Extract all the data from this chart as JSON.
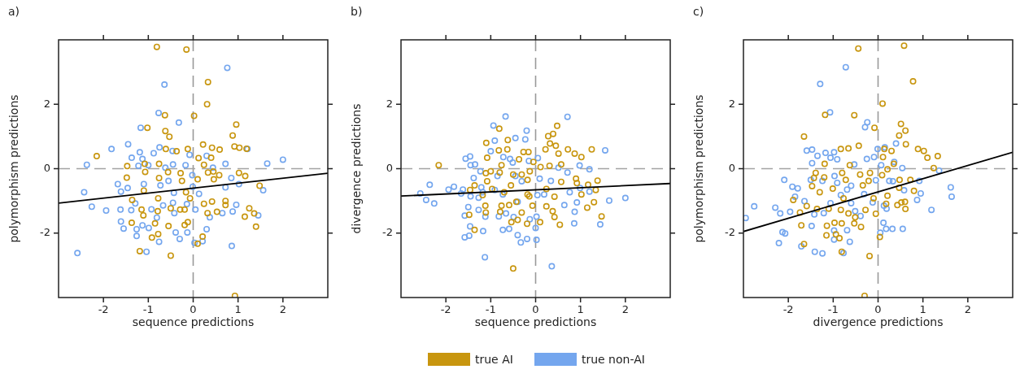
{
  "chart_data": [
    {
      "type": "scatter",
      "title": "a)",
      "xlabel": "sequence predictions",
      "ylabel": "polymorphism predictions",
      "xlim": [
        -3,
        3
      ],
      "ylim": [
        -4,
        4
      ],
      "xticks": [
        -2,
        -1,
        0,
        1,
        2
      ],
      "yticks": [
        -2,
        0,
        2
      ],
      "ref_lines": [
        {
          "axis": "x",
          "value": 0,
          "color": "#999999",
          "line_style": "dashed"
        },
        {
          "axis": "y",
          "value": 0,
          "color": "#a3a3a3",
          "line_style": "dashed"
        }
      ],
      "series": [
        {
          "marker": "circle",
          "color": "#c8960f",
          "x": [
            -0.81,
            -0.15,
            0.33,
            0.31,
            -0.63,
            0.02,
            -1.02,
            -0.62,
            -0.53,
            0.96,
            0.88,
            -2.15,
            -1.47,
            -0.61,
            -0.37,
            -0.12,
            0.22,
            0.42,
            0.59,
            0.92,
            1.03,
            1.19,
            0.12,
            0.4,
            0.24,
            -1.08,
            -1.07,
            -0.76,
            -0.56,
            -1.48,
            -0.76,
            -0.28,
            -0.25,
            0.1,
            0.33,
            0.45,
            0.58,
            1.02,
            1.16,
            0.46,
            1.48,
            -1.1,
            -1.36,
            -0.78,
            -0.16,
            -0.07,
            0.42,
            0.72,
            0.72,
            0.24,
            -1.15,
            -1.11,
            -0.79,
            -0.5,
            -0.29,
            -0.19,
            0.32,
            0.53,
            1.25,
            1.36,
            1.15,
            -1.37,
            -0.85,
            -0.55,
            -0.19,
            -0.12,
            1.4,
            -0.78,
            -0.92,
            0.21,
            0.1,
            -1.19,
            -0.5,
            0.93
          ],
          "values": [
            3.78,
            3.7,
            2.69,
            2.0,
            1.66,
            1.64,
            1.27,
            1.17,
            0.99,
            1.37,
            1.03,
            0.39,
            0.08,
            0.61,
            0.54,
            0.61,
            0.75,
            0.65,
            0.59,
            0.69,
            0.65,
            0.62,
            0.33,
            0.34,
            0.12,
            0.15,
            -0.1,
            0.15,
            -0.11,
            -0.28,
            -0.29,
            -0.14,
            -0.38,
            -0.33,
            -0.12,
            -0.09,
            -0.2,
            -0.13,
            -0.23,
            -0.33,
            -0.53,
            -0.68,
            -0.97,
            -0.92,
            -0.73,
            -0.92,
            -1.02,
            -1.0,
            -1.13,
            -1.09,
            -1.27,
            -1.45,
            -1.32,
            -1.23,
            -1.27,
            -1.27,
            -1.38,
            -1.34,
            -1.23,
            -1.39,
            -1.49,
            -1.68,
            -1.7,
            -1.78,
            -1.75,
            -1.66,
            -1.8,
            -2.03,
            -2.14,
            -2.11,
            -2.33,
            -2.56,
            -2.7,
            -3.95
          ]
        },
        {
          "marker": "circle",
          "color": "#74a6ee",
          "x": [
            0.76,
            -0.64,
            -0.77,
            -0.32,
            -1.17,
            -1.45,
            -1.82,
            -2.37,
            1.65,
            2.0,
            0.72,
            1.21,
            -0.88,
            -0.75,
            -0.46,
            -0.08,
            0.3,
            -1.37,
            -1.19,
            -1.13,
            -1.22,
            -1.0,
            -0.62,
            -0.45,
            -0.17,
            -0.02,
            0.44,
            0.85,
            -1.68,
            -1.46,
            -1.61,
            -2.43,
            -1.1,
            -0.73,
            -0.55,
            -0.43,
            -0.01,
            0.13,
            0.72,
            1.56,
            1.02,
            -2.26,
            -1.94,
            -1.62,
            -1.38,
            -1.29,
            -0.93,
            -0.67,
            -0.45,
            -0.42,
            -0.14,
            0.05,
            0.37,
            0.65,
            0.88,
            0.96,
            1.45,
            -1.61,
            -1.55,
            -1.26,
            -1.13,
            -0.99,
            -0.81,
            -0.39,
            -0.13,
            0.3,
            -0.3,
            -0.76,
            0.21,
            0.03,
            -1.26,
            -1.04,
            -2.58,
            0.86
          ],
          "values": [
            3.13,
            2.61,
            1.73,
            1.43,
            1.27,
            0.76,
            0.61,
            0.12,
            0.16,
            0.28,
            0.15,
            0.61,
            0.48,
            0.66,
            0.55,
            0.43,
            0.4,
            0.34,
            0.51,
            0.3,
            0.09,
            0.11,
            0.03,
            0.13,
            0.11,
            -0.2,
            0.03,
            -0.29,
            -0.48,
            -0.6,
            -0.71,
            -0.73,
            -0.48,
            -0.52,
            -0.38,
            -0.75,
            -0.56,
            -0.78,
            -0.58,
            -0.67,
            -0.48,
            -1.18,
            -1.3,
            -1.27,
            -1.29,
            -1.08,
            -1.26,
            -1.14,
            -1.06,
            -1.38,
            -1.1,
            -1.27,
            -1.51,
            -1.38,
            -1.33,
            -1.12,
            -1.45,
            -1.64,
            -1.86,
            -1.88,
            -1.76,
            -1.84,
            -1.52,
            -1.98,
            -1.98,
            -1.88,
            -2.18,
            -2.27,
            -2.25,
            -2.3,
            -2.09,
            -2.58,
            -2.62,
            -2.4
          ]
        },
        {
          "type": "line",
          "color": "#000000",
          "x": [
            -3,
            3
          ],
          "values": [
            -1.07,
            -0.14
          ]
        }
      ]
    },
    {
      "type": "scatter",
      "title": "b)",
      "xlabel": "sequence predictions",
      "ylabel": "divergence predictions",
      "xlim": [
        -3,
        3
      ],
      "ylim": [
        -4,
        4
      ],
      "xticks": [
        -2,
        -1,
        0,
        1,
        2
      ],
      "yticks": [
        -2,
        0,
        2
      ],
      "legend": "bottom",
      "ref_lines": [
        {
          "axis": "x",
          "value": 0,
          "color": "#999999",
          "line_style": "dashed"
        },
        {
          "axis": "y",
          "value": 0,
          "color": "#a3a3a3",
          "line_style": "dashed"
        }
      ],
      "series": [
        {
          "name": "true AI",
          "marker": "circle",
          "color": "#c8960f",
          "x": [
            -2.16,
            -0.81,
            -1.1,
            -0.62,
            0.48,
            0.28,
            0.39,
            0.32,
            0.45,
            0.22,
            -0.82,
            -0.63,
            -0.27,
            -0.16,
            0.51,
            0.72,
            0.87,
            1.02,
            1.25,
            -1.08,
            -0.76,
            -0.37,
            -0.05,
            0.11,
            0.31,
            0.57,
            -1.11,
            -1.0,
            -0.8,
            -0.5,
            -0.31,
            -0.13,
            -1.08,
            -1.36,
            -1.46,
            -0.97,
            -0.7,
            -0.55,
            -0.18,
            -0.18,
            -0.14,
            0.24,
            0.42,
            0.57,
            0.9,
            0.92,
            1.17,
            1.38,
            1.34,
            1.02,
            1.3,
            1.15,
            -1.18,
            -1.12,
            -0.76,
            -0.59,
            -0.43,
            -0.07,
            0.24,
            0.38,
            0.42,
            -1.11,
            -1.48,
            -0.79,
            -0.31,
            -0.4,
            -0.54,
            -0.19,
            0.1,
            0.54,
            1.47,
            -1.36,
            -0.5
          ],
          "values": [
            0.11,
            1.24,
            0.8,
            0.89,
            1.33,
            1.01,
            1.08,
            0.78,
            0.71,
            0.6,
            0.57,
            0.6,
            0.52,
            0.52,
            0.47,
            0.6,
            0.47,
            0.36,
            0.6,
            0.34,
            0.11,
            0.29,
            0.21,
            0.05,
            0.09,
            0.13,
            -0.14,
            -0.08,
            -0.12,
            -0.18,
            -0.18,
            -0.08,
            -0.39,
            -0.52,
            -0.66,
            -0.63,
            -0.73,
            -0.52,
            -0.35,
            -0.8,
            -0.86,
            -0.63,
            -0.87,
            -0.41,
            -0.31,
            -0.45,
            -0.5,
            -0.37,
            -0.66,
            -0.8,
            -1.04,
            -1.21,
            -0.82,
            -1.15,
            -1.15,
            -1.13,
            -1.03,
            -1.15,
            -1.17,
            -1.32,
            -1.5,
            -1.36,
            -1.43,
            -1.34,
            -1.36,
            -1.59,
            -1.66,
            -1.71,
            -1.66,
            -1.74,
            -1.48,
            -1.9,
            -3.1
          ]
        },
        {
          "name": "true non-AI",
          "marker": "circle",
          "color": "#74a6ee",
          "x": [
            -0.67,
            0.71,
            -0.94,
            -0.2,
            -0.45,
            -0.91,
            -0.23,
            -1.0,
            1.55,
            -1.56,
            -1.46,
            -1.45,
            -1.35,
            -0.72,
            -0.57,
            -0.51,
            0.05,
            -0.15,
            0.98,
            1.2,
            0.71,
            0.51,
            -1.23,
            -1.38,
            -0.85,
            -0.45,
            -0.31,
            0.09,
            0.34,
            -2.36,
            -2.57,
            -2.44,
            -2.26,
            -1.94,
            -1.82,
            -1.62,
            -1.66,
            -1.45,
            -1.21,
            -1.18,
            -1.27,
            -0.91,
            -0.73,
            -0.4,
            0.04,
            0.19,
            0.76,
            0.99,
            1.2,
            1.64,
            2.0,
            0.64,
            0.92,
            0.87,
            -1.5,
            -1.27,
            -1.58,
            -1.12,
            -0.82,
            -0.66,
            -0.49,
            -0.13,
            0.02,
            -1.46,
            -1.17,
            -1.58,
            -1.48,
            -0.73,
            -0.59,
            -0.4,
            -0.33,
            -0.19,
            0.02,
            0,
            0.86,
            1.44,
            -1.13,
            0.36
          ],
          "values": [
            1.62,
            1.61,
            1.34,
            1.18,
            0.95,
            0.87,
            0.91,
            0.54,
            0.57,
            0.31,
            0.38,
            0.11,
            0.13,
            0.36,
            0.3,
            0.19,
            0.33,
            0.24,
            0.1,
            -0.02,
            -0.12,
            0.03,
            -0.08,
            -0.29,
            -0.23,
            -0.23,
            -0.39,
            -0.31,
            -0.38,
            -0.5,
            -0.77,
            -0.97,
            -1.08,
            -0.65,
            -0.56,
            -0.65,
            -0.77,
            -0.86,
            -0.58,
            -0.73,
            -0.9,
            -0.66,
            -0.8,
            -1.03,
            -0.82,
            -0.8,
            -0.73,
            -0.6,
            -0.71,
            -0.99,
            -0.91,
            -1.13,
            -1.05,
            -1.34,
            -1.19,
            -1.28,
            -1.46,
            -1.49,
            -1.48,
            -1.39,
            -1.5,
            -1.57,
            -1.49,
            -1.79,
            -1.94,
            -2.13,
            -2.08,
            -1.9,
            -1.87,
            -2.06,
            -2.29,
            -2.18,
            -2.21,
            -1.84,
            -1.7,
            -1.73,
            -2.75,
            -3.03
          ]
        },
        {
          "type": "line",
          "color": "#000000",
          "x": [
            -3,
            3
          ],
          "values": [
            -0.85,
            -0.46
          ]
        }
      ]
    },
    {
      "type": "scatter",
      "title": "c)",
      "xlabel": "divergence predictions",
      "ylabel": "polymorphism predictions",
      "xlim": [
        -3,
        3
      ],
      "ylim": [
        -4,
        4
      ],
      "xticks": [
        -2,
        -1,
        0,
        1,
        2
      ],
      "yticks": [
        -2,
        0,
        2
      ],
      "ref_lines": [
        {
          "axis": "x",
          "value": 0,
          "color": "#999999",
          "line_style": "dashed"
        },
        {
          "axis": "y",
          "value": 0,
          "color": "#a3a3a3",
          "line_style": "dashed"
        }
      ],
      "series": [
        {
          "marker": "circle",
          "color": "#c8960f",
          "x": [
            -0.44,
            0.58,
            0.78,
            0.1,
            -1.18,
            -0.53,
            -0.08,
            0.51,
            0.47,
            0.61,
            -1.65,
            0.62,
            -0.83,
            -0.66,
            -0.43,
            0.14,
            0.3,
            0.89,
            1.02,
            1.1,
            1.33,
            1.24,
            0.35,
            0.11,
            -0.63,
            -1.19,
            -1.39,
            -1.2,
            -0.8,
            -0.4,
            -0.18,
            0.09,
            0.21,
            -0.72,
            -1.43,
            -1.47,
            -1.3,
            -1.01,
            -0.34,
            -0.21,
            0.48,
            0.72,
            0.47,
            0.8,
            -0.77,
            -0.1,
            0.21,
            0.18,
            0.43,
            0.52,
            0.6,
            0.61,
            -1.89,
            -1.59,
            -1.74,
            -1.36,
            -1.1,
            -0.83,
            -0.66,
            -0.28,
            -0.05,
            -0.51,
            -1.71,
            -1.14,
            -0.97,
            -0.81,
            -0.53,
            -0.38,
            -1.15,
            -0.94,
            -0.86,
            0.04,
            -1.65,
            -0.81,
            -0.19,
            -0.3
          ],
          "values": [
            3.73,
            3.82,
            2.71,
            2.02,
            1.67,
            1.66,
            1.27,
            1.39,
            1.03,
            1.18,
            1.0,
            0.76,
            0.61,
            0.63,
            0.71,
            0.61,
            0.55,
            0.61,
            0.55,
            0.34,
            0.39,
            0.02,
            0.15,
            0.36,
            0.11,
            0.15,
            -0.13,
            -0.27,
            -0.13,
            -0.18,
            -0.13,
            -0.2,
            -0.02,
            -0.35,
            -0.29,
            -0.54,
            -0.73,
            -0.62,
            -0.52,
            -0.38,
            -0.35,
            -0.35,
            -0.59,
            -0.69,
            -0.92,
            -0.92,
            -0.84,
            -1.09,
            -1.13,
            -1.05,
            -1.03,
            -1.25,
            -0.97,
            -1.16,
            -1.36,
            -1.25,
            -1.24,
            -1.28,
            -1.39,
            -1.28,
            -1.4,
            -1.51,
            -1.76,
            -1.77,
            -1.68,
            -1.7,
            -1.7,
            -1.81,
            -2.07,
            -2.04,
            -2.16,
            -2.12,
            -2.34,
            -2.58,
            -2.71,
            -3.95
          ]
        },
        {
          "marker": "circle",
          "color": "#74a6ee",
          "x": [
            -0.72,
            -1.29,
            -1.07,
            -0.24,
            -0.29,
            -1.59,
            -1.47,
            -1.35,
            -1.17,
            -0.98,
            -1.06,
            -0.91,
            -1.47,
            -0.01,
            0.15,
            0.4,
            0.36,
            -0.25,
            -0.09,
            0.07,
            -0.53,
            0.54,
            1.36,
            -2.09,
            -1.91,
            -1.79,
            -1.85,
            -1.5,
            -1.24,
            -0.97,
            -0.91,
            -0.69,
            -0.83,
            -0.6,
            -0.31,
            -0.05,
            0.25,
            0.33,
            0.58,
            0.92,
            0.95,
            0.87,
            1.62,
            1.64,
            -2.76,
            -2.95,
            -2.29,
            -2.18,
            -1.96,
            -1.64,
            -1.42,
            -1.21,
            -1.06,
            -0.6,
            -0.51,
            -0.39,
            -0.12,
            0.13,
            0.19,
            1.19,
            -1.48,
            -1.71,
            -2.21,
            -2.13,
            -2.07,
            -0.98,
            -0.98,
            -0.69,
            -0.63,
            0.12,
            0.18,
            0.32,
            0.55,
            0.05,
            -1.41,
            -1.24,
            -0.77
          ],
          "values": [
            3.15,
            2.63,
            1.75,
            1.44,
            1.29,
            0.56,
            0.59,
            0.4,
            0.49,
            0.51,
            0.34,
            0.29,
            0.17,
            0.61,
            0.66,
            0.78,
            0.21,
            0.3,
            0.36,
            0.11,
            0.13,
            0.02,
            -0.06,
            -0.35,
            -0.56,
            -0.61,
            -0.87,
            -0.35,
            -0.38,
            -0.23,
            -0.44,
            -0.65,
            -0.82,
            -0.53,
            -0.79,
            -0.36,
            -0.38,
            -0.39,
            -0.67,
            -0.38,
            -0.77,
            -0.97,
            -0.58,
            -0.87,
            -1.17,
            -1.53,
            -1.21,
            -1.39,
            -1.34,
            -1.01,
            -1.42,
            -1.38,
            -1.07,
            -1.07,
            -1.32,
            -1.47,
            -1.05,
            -1.15,
            -1.24,
            -1.28,
            -1.78,
            -2.41,
            -2.31,
            -1.97,
            -2.01,
            -1.92,
            -2.2,
            -1.91,
            -2.27,
            -1.68,
            -1.87,
            -1.87,
            -1.87,
            -1.99,
            -2.58,
            -2.63,
            -2.62
          ]
        },
        {
          "type": "line",
          "color": "#000000",
          "x": [
            -3,
            3
          ],
          "values": [
            -1.95,
            0.51
          ]
        }
      ]
    }
  ]
}
